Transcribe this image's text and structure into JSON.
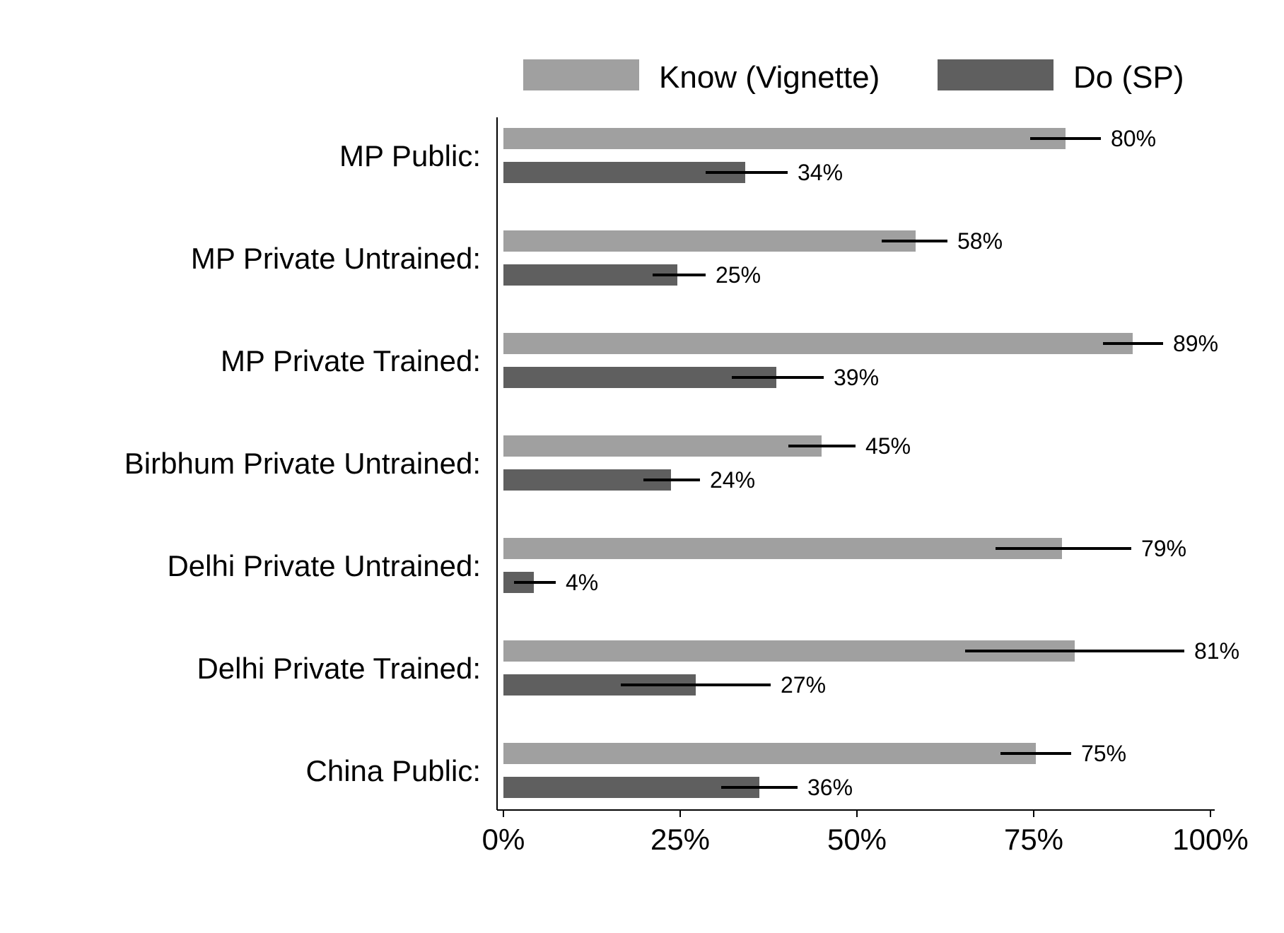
{
  "chart_data": {
    "type": "bar",
    "orientation": "horizontal",
    "title": "",
    "xlabel": "",
    "ylabel": "",
    "xlim": [
      0,
      100
    ],
    "x_ticks": [
      0,
      25,
      50,
      75,
      100
    ],
    "x_tick_labels": [
      "0%",
      "25%",
      "50%",
      "75%",
      "100%"
    ],
    "grid": false,
    "legend_position": "top-right",
    "categories": [
      "MP Public:",
      "MP Private Untrained:",
      "MP Private Trained:",
      "Birbhum Private Untrained:",
      "Delhi Private Untrained:",
      "Delhi Private Trained:",
      "China Public:"
    ],
    "series": [
      {
        "name": "Know (Vignette)",
        "color": "#a0a0a0",
        "values": [
          79.5,
          58.3,
          89.0,
          45.0,
          79.0,
          80.8,
          75.3
        ],
        "data_labels": [
          "80%",
          "58%",
          "89%",
          "45%",
          "79%",
          "81%",
          "75%"
        ],
        "ci_low": [
          74.5,
          53.5,
          84.8,
          40.3,
          69.6,
          65.3,
          70.3
        ],
        "ci_high": [
          84.5,
          62.8,
          93.3,
          49.8,
          88.8,
          96.3,
          80.3
        ]
      },
      {
        "name": "Do (SP)",
        "color": "#5f5f5f",
        "values": [
          34.2,
          24.6,
          38.6,
          23.7,
          4.3,
          27.2,
          36.2
        ],
        "data_labels": [
          "34%",
          "25%",
          "39%",
          "24%",
          "4%",
          "27%",
          "36%"
        ],
        "ci_low": [
          28.6,
          21.1,
          32.3,
          19.8,
          1.5,
          16.6,
          30.8
        ],
        "ci_high": [
          40.2,
          28.6,
          45.3,
          27.8,
          7.4,
          37.8,
          41.6
        ]
      }
    ]
  }
}
